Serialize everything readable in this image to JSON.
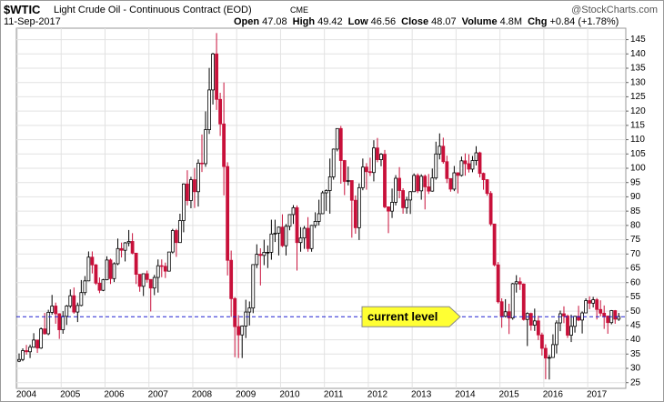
{
  "header": {
    "symbol": "$WTIC",
    "name": "Light Crude Oil - Continuous Contract (EOD)",
    "exchange": "CME",
    "date": "11-Sep-2017",
    "quote": [
      {
        "label": "Open",
        "value": "47.08"
      },
      {
        "label": "High",
        "value": "49.42"
      },
      {
        "label": "Low",
        "value": "46.56"
      },
      {
        "label": "Close",
        "value": "48.07"
      },
      {
        "label": "Volume",
        "value": "4.8M"
      },
      {
        "label": "Chg",
        "value": "+0.84 (+1.78%)"
      }
    ],
    "brand": "@StockCharts.com"
  },
  "chart_data": {
    "type": "candlestick",
    "ylim": [
      23,
      149
    ],
    "yticks": [
      25,
      30,
      35,
      40,
      45,
      50,
      55,
      60,
      65,
      70,
      75,
      80,
      85,
      90,
      95,
      100,
      105,
      110,
      115,
      120,
      125,
      130,
      135,
      140,
      145
    ],
    "grid": true,
    "up_color": "#000000",
    "down_color": "#c8103a",
    "reference_line": {
      "value": 48.07,
      "color": "#2020d0"
    },
    "annotation": {
      "text": "current level",
      "color": "#ffff33"
    },
    "categories": [
      "2004",
      null,
      null,
      null,
      null,
      null,
      null,
      null,
      null,
      null,
      null,
      null,
      "2005",
      null,
      null,
      null,
      null,
      null,
      null,
      null,
      null,
      null,
      null,
      null,
      "2006",
      null,
      null,
      null,
      null,
      null,
      null,
      null,
      null,
      null,
      null,
      null,
      "2007",
      null,
      null,
      null,
      null,
      null,
      null,
      null,
      null,
      null,
      null,
      null,
      "2008",
      null,
      null,
      null,
      null,
      null,
      null,
      null,
      null,
      null,
      null,
      null,
      "2009",
      null,
      null,
      null,
      null,
      null,
      null,
      null,
      null,
      null,
      null,
      null,
      "2010",
      null,
      null,
      null,
      null,
      null,
      null,
      null,
      null,
      null,
      null,
      null,
      "2011",
      null,
      null,
      null,
      null,
      null,
      null,
      null,
      null,
      null,
      null,
      null,
      "2012",
      null,
      null,
      null,
      null,
      null,
      null,
      null,
      null,
      null,
      null,
      null,
      "2013",
      null,
      null,
      null,
      null,
      null,
      null,
      null,
      null,
      null,
      null,
      null,
      "2014",
      null,
      null,
      null,
      null,
      null,
      null,
      null,
      null,
      null,
      null,
      null,
      "2015",
      null,
      null,
      null,
      null,
      null,
      null,
      null,
      null,
      null,
      null,
      null,
      "2016",
      null,
      null,
      null,
      null,
      null,
      null,
      null,
      null,
      null,
      null,
      null,
      "2017",
      null,
      null,
      null,
      null,
      null,
      null,
      null,
      null
    ],
    "ohlc": [
      [
        32.5,
        35.2,
        32.2,
        33.1
      ],
      [
        33.1,
        37.0,
        32.5,
        36.2
      ],
      [
        36.2,
        38.2,
        34.8,
        35.8
      ],
      [
        35.8,
        38.3,
        33.6,
        37.4
      ],
      [
        37.4,
        42.3,
        37.2,
        39.9
      ],
      [
        39.9,
        40.0,
        35.4,
        37.1
      ],
      [
        37.1,
        44.3,
        36.8,
        43.8
      ],
      [
        43.8,
        49.4,
        41.8,
        42.1
      ],
      [
        42.1,
        50.5,
        41.6,
        49.6
      ],
      [
        49.6,
        55.7,
        48.8,
        51.8
      ],
      [
        51.8,
        53.0,
        45.6,
        49.1
      ],
      [
        49.1,
        49.3,
        40.3,
        43.5
      ],
      [
        43.5,
        50.0,
        42.1,
        48.2
      ],
      [
        48.2,
        52.2,
        45.2,
        51.8
      ],
      [
        51.8,
        57.6,
        51.1,
        55.4
      ],
      [
        55.4,
        58.3,
        49.1,
        49.7
      ],
      [
        49.7,
        53.0,
        46.2,
        52.0
      ],
      [
        52.0,
        60.9,
        51.7,
        56.5
      ],
      [
        56.5,
        62.3,
        55.6,
        60.6
      ],
      [
        60.6,
        70.9,
        60.5,
        68.9
      ],
      [
        68.9,
        70.9,
        63.2,
        66.2
      ],
      [
        66.2,
        66.5,
        59.2,
        59.8
      ],
      [
        59.8,
        61.8,
        56.3,
        57.3
      ],
      [
        57.3,
        61.3,
        57.0,
        61.0
      ],
      [
        61.0,
        69.2,
        60.8,
        67.9
      ],
      [
        67.9,
        68.4,
        59.5,
        61.4
      ],
      [
        61.4,
        67.1,
        60.2,
        66.6
      ],
      [
        66.6,
        75.4,
        66.1,
        71.9
      ],
      [
        71.9,
        74.0,
        68.8,
        71.3
      ],
      [
        71.3,
        74.2,
        67.4,
        73.9
      ],
      [
        73.9,
        78.4,
        72.7,
        74.4
      ],
      [
        74.4,
        77.3,
        69.9,
        70.3
      ],
      [
        70.3,
        70.4,
        59.5,
        62.9
      ],
      [
        62.9,
        62.9,
        56.8,
        58.7
      ],
      [
        58.7,
        62.4,
        55.3,
        63.1
      ],
      [
        63.1,
        64.2,
        60.0,
        61.1
      ],
      [
        61.1,
        61.2,
        49.9,
        58.1
      ],
      [
        58.1,
        62.7,
        55.6,
        61.8
      ],
      [
        61.8,
        68.1,
        56.5,
        65.9
      ],
      [
        65.9,
        68.1,
        61.9,
        65.7
      ],
      [
        65.7,
        67.0,
        61.6,
        64.0
      ],
      [
        64.0,
        70.7,
        64.0,
        70.7
      ],
      [
        70.7,
        78.8,
        70.2,
        78.2
      ],
      [
        78.2,
        78.8,
        69.0,
        74.0
      ],
      [
        74.0,
        84.1,
        73.9,
        81.7
      ],
      [
        81.7,
        94.7,
        77.6,
        94.5
      ],
      [
        94.5,
        99.3,
        87.0,
        88.7
      ],
      [
        88.7,
        97.0,
        86.0,
        96.0
      ],
      [
        96.0,
        100.1,
        86.1,
        91.8
      ],
      [
        91.8,
        103.1,
        86.6,
        101.8
      ],
      [
        101.8,
        111.8,
        98.7,
        101.6
      ],
      [
        101.6,
        119.9,
        100.5,
        113.5
      ],
      [
        113.5,
        135.1,
        112.0,
        127.4
      ],
      [
        127.4,
        140.4,
        122.3,
        140.0
      ],
      [
        140.0,
        147.3,
        120.4,
        124.1
      ],
      [
        124.1,
        126.4,
        111.3,
        115.5
      ],
      [
        115.5,
        130.0,
        90.5,
        100.6
      ],
      [
        100.6,
        102.1,
        62.5,
        67.8
      ],
      [
        67.8,
        71.2,
        48.0,
        54.4
      ],
      [
        54.4,
        54.9,
        33.9,
        44.6
      ],
      [
        44.6,
        48.6,
        33.6,
        41.7
      ],
      [
        41.7,
        45.0,
        33.6,
        44.8
      ],
      [
        44.8,
        54.0,
        40.6,
        49.7
      ],
      [
        49.7,
        53.4,
        45.0,
        51.1
      ],
      [
        51.1,
        66.4,
        49.3,
        66.3
      ],
      [
        66.3,
        73.4,
        65.1,
        69.9
      ],
      [
        69.9,
        72.0,
        59.0,
        69.5
      ],
      [
        69.5,
        75.0,
        66.1,
        70.6
      ],
      [
        70.6,
        73.0,
        65.1,
        70.6
      ],
      [
        70.6,
        82.0,
        68.0,
        77.0
      ],
      [
        77.0,
        82.0,
        74.2,
        77.3
      ],
      [
        77.3,
        79.6,
        69.5,
        79.4
      ],
      [
        79.4,
        83.9,
        72.4,
        72.9
      ],
      [
        72.9,
        80.5,
        69.5,
        79.7
      ],
      [
        79.7,
        83.9,
        78.3,
        83.8
      ],
      [
        83.8,
        87.1,
        80.5,
        86.2
      ],
      [
        86.2,
        87.0,
        64.2,
        74.0
      ],
      [
        74.0,
        79.4,
        70.8,
        75.6
      ],
      [
        75.6,
        79.8,
        71.8,
        79.0
      ],
      [
        79.0,
        82.9,
        70.8,
        71.9
      ],
      [
        71.9,
        80.2,
        70.8,
        80.0
      ],
      [
        80.0,
        84.6,
        79.1,
        81.4
      ],
      [
        81.4,
        89.0,
        80.0,
        84.1
      ],
      [
        84.1,
        92.1,
        84.0,
        91.4
      ],
      [
        91.4,
        92.6,
        85.1,
        92.2
      ],
      [
        92.2,
        103.4,
        84.1,
        97.0
      ],
      [
        97.0,
        106.9,
        96.0,
        106.7
      ],
      [
        106.7,
        113.9,
        105.9,
        113.9
      ],
      [
        113.9,
        114.8,
        94.6,
        102.7
      ],
      [
        102.7,
        102.9,
        90.6,
        95.4
      ],
      [
        95.4,
        100.6,
        94.0,
        95.7
      ],
      [
        95.7,
        95.7,
        75.7,
        88.8
      ],
      [
        88.8,
        90.5,
        77.1,
        79.2
      ],
      [
        79.2,
        94.7,
        74.9,
        93.2
      ],
      [
        93.2,
        103.4,
        92.3,
        100.4
      ],
      [
        100.4,
        101.8,
        92.5,
        98.8
      ],
      [
        98.8,
        103.7,
        97.3,
        98.5
      ],
      [
        98.5,
        109.8,
        95.4,
        107.1
      ],
      [
        107.1,
        110.6,
        102.1,
        103.0
      ],
      [
        103.0,
        105.3,
        100.7,
        104.9
      ],
      [
        104.9,
        106.4,
        86.0,
        86.5
      ],
      [
        86.5,
        86.6,
        77.3,
        85.0
      ],
      [
        85.0,
        92.9,
        82.6,
        88.1
      ],
      [
        88.1,
        97.6,
        87.0,
        96.5
      ],
      [
        96.5,
        100.4,
        89.5,
        92.2
      ],
      [
        92.2,
        93.0,
        84.1,
        86.2
      ],
      [
        86.2,
        90.0,
        84.1,
        88.9
      ],
      [
        88.9,
        92.0,
        84.0,
        91.8
      ],
      [
        91.8,
        98.2,
        91.7,
        97.5
      ],
      [
        97.5,
        98.2,
        91.3,
        92.1
      ],
      [
        92.1,
        97.9,
        89.0,
        97.2
      ],
      [
        97.2,
        97.8,
        85.6,
        93.5
      ],
      [
        93.5,
        98.0,
        91.0,
        92.0
      ],
      [
        92.0,
        99.9,
        91.8,
        96.6
      ],
      [
        96.6,
        109.3,
        96.0,
        105.0
      ],
      [
        105.0,
        112.2,
        103.1,
        107.7
      ],
      [
        107.7,
        110.7,
        101.6,
        102.3
      ],
      [
        102.3,
        104.4,
        94.8,
        96.4
      ],
      [
        96.4,
        96.5,
        91.8,
        92.7
      ],
      [
        92.7,
        100.8,
        92.0,
        98.4
      ],
      [
        98.4,
        98.6,
        91.2,
        97.5
      ],
      [
        97.5,
        104.1,
        97.1,
        102.6
      ],
      [
        102.6,
        105.2,
        97.4,
        101.6
      ],
      [
        101.6,
        104.9,
        98.5,
        99.7
      ],
      [
        99.7,
        104.3,
        98.6,
        102.7
      ],
      [
        102.7,
        107.7,
        101.0,
        105.4
      ],
      [
        105.4,
        105.8,
        96.8,
        98.2
      ],
      [
        98.2,
        98.5,
        92.5,
        96.0
      ],
      [
        96.0,
        96.2,
        90.4,
        91.2
      ],
      [
        91.2,
        92.0,
        79.8,
        80.5
      ],
      [
        80.5,
        80.5,
        65.7,
        66.2
      ],
      [
        66.2,
        67.2,
        52.7,
        53.3
      ],
      [
        53.3,
        54.5,
        44.2,
        48.2
      ],
      [
        48.2,
        54.2,
        47.8,
        49.8
      ],
      [
        49.8,
        52.6,
        42.0,
        47.6
      ],
      [
        47.6,
        59.9,
        47.0,
        59.6
      ],
      [
        59.6,
        62.6,
        56.5,
        60.3
      ],
      [
        60.3,
        61.8,
        57.4,
        59.5
      ],
      [
        59.5,
        59.7,
        46.7,
        47.1
      ],
      [
        47.1,
        49.6,
        37.8,
        49.2
      ],
      [
        49.2,
        49.5,
        43.2,
        45.1
      ],
      [
        45.1,
        50.9,
        43.1,
        46.6
      ],
      [
        46.6,
        48.4,
        39.9,
        41.7
      ],
      [
        41.7,
        42.5,
        34.5,
        37.0
      ],
      [
        37.0,
        38.4,
        26.2,
        33.6
      ],
      [
        33.6,
        34.7,
        26.1,
        33.8
      ],
      [
        33.8,
        41.9,
        33.7,
        38.3
      ],
      [
        38.3,
        46.8,
        35.2,
        45.9
      ],
      [
        45.9,
        50.2,
        43.0,
        49.1
      ],
      [
        49.1,
        51.7,
        45.8,
        48.3
      ],
      [
        48.3,
        48.8,
        40.6,
        41.6
      ],
      [
        41.6,
        48.8,
        39.2,
        44.7
      ],
      [
        44.7,
        48.4,
        42.5,
        48.2
      ],
      [
        48.2,
        51.9,
        46.5,
        46.9
      ],
      [
        46.9,
        49.9,
        42.2,
        49.4
      ],
      [
        49.4,
        54.5,
        49.4,
        53.7
      ],
      [
        53.7,
        55.2,
        50.7,
        52.8
      ],
      [
        52.8,
        55.0,
        51.3,
        54.0
      ],
      [
        54.0,
        54.6,
        47.1,
        50.6
      ],
      [
        50.6,
        53.8,
        48.2,
        49.3
      ],
      [
        49.3,
        52.0,
        43.8,
        48.3
      ],
      [
        48.3,
        48.4,
        42.1,
        46.0
      ],
      [
        46.0,
        50.4,
        45.4,
        50.2
      ],
      [
        50.2,
        50.4,
        45.6,
        47.2
      ],
      [
        47.2,
        49.4,
        46.6,
        48.1
      ]
    ]
  }
}
